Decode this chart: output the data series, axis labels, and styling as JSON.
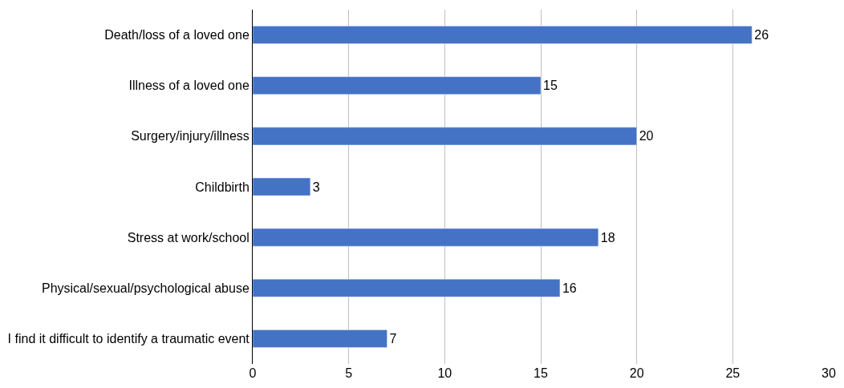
{
  "chart_data": {
    "type": "bar",
    "orientation": "horizontal",
    "categories": [
      "Death/loss of a loved one",
      "Illness of a loved one",
      "Surgery/injury/illness",
      "Childbirth",
      "Stress at work/school",
      "Physical/sexual/psychological abuse",
      "I find it difficult to identify a traumatic event"
    ],
    "values": [
      26,
      15,
      20,
      3,
      18,
      16,
      7
    ],
    "color": "#4472c4",
    "xlim": [
      0,
      30
    ],
    "xticks": [
      0,
      5,
      10,
      15,
      20,
      25,
      30
    ],
    "grid": "x",
    "data_labels": true
  }
}
